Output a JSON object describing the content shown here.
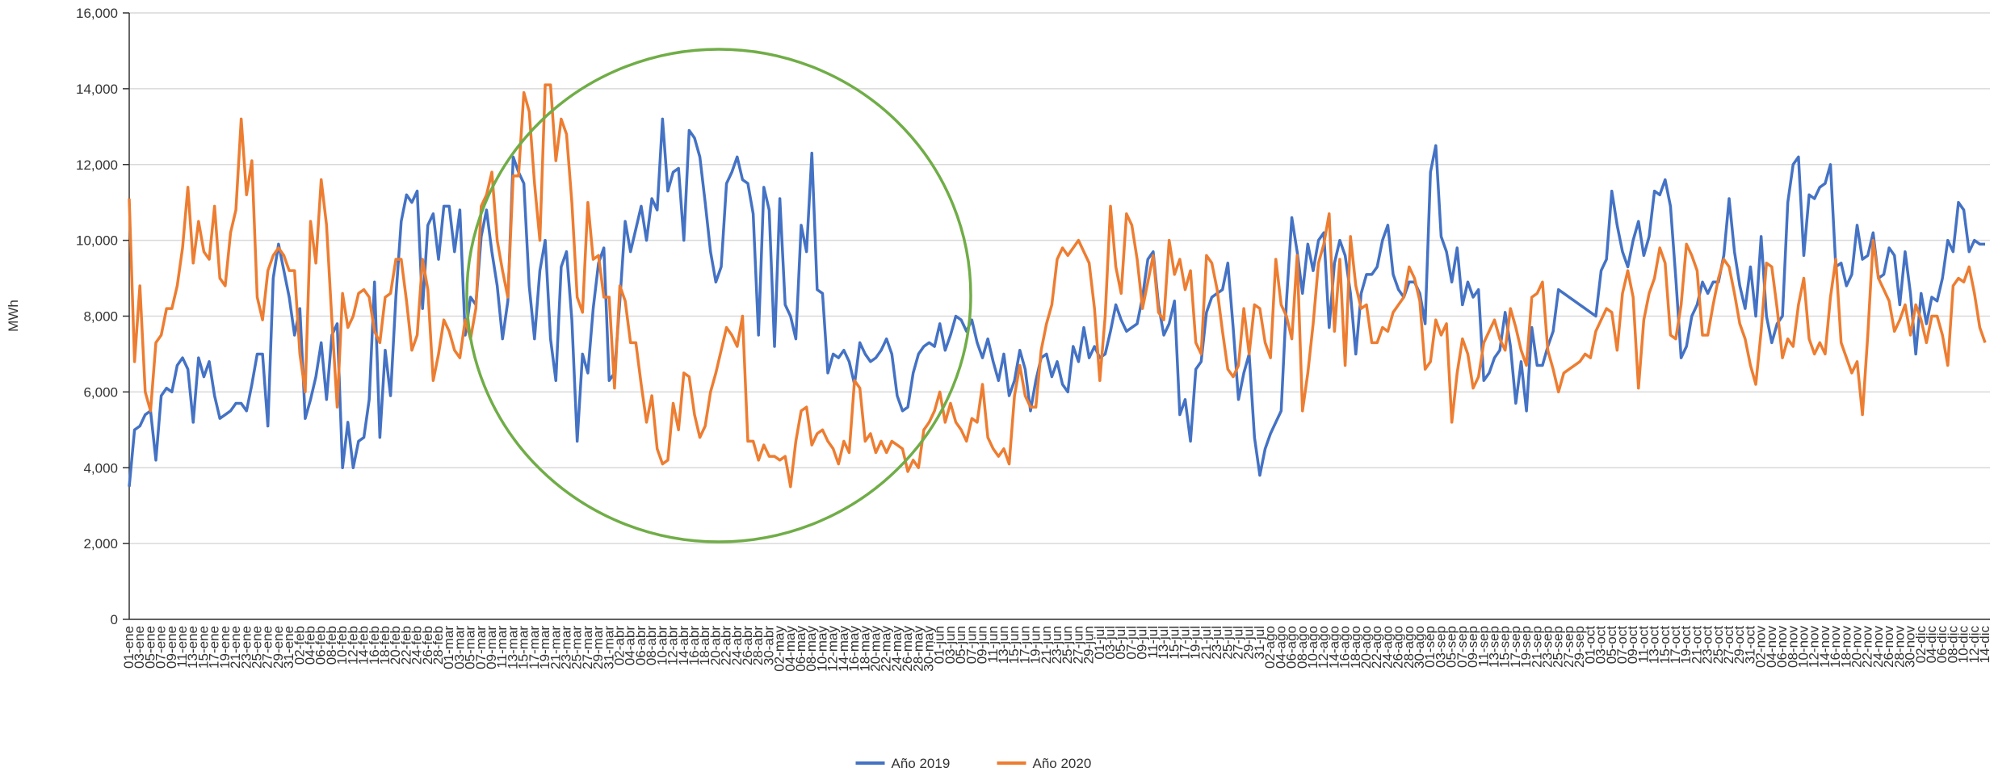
{
  "chart_data": {
    "type": "line",
    "y_label": "MWh",
    "categories": [
      "01-ene",
      null,
      "03-ene",
      null,
      "05-ene",
      null,
      "07-ene",
      null,
      "09-ene",
      null,
      "11-ene",
      null,
      "13-ene",
      null,
      "15-ene",
      null,
      "17-ene",
      null,
      "19-ene",
      null,
      "21-ene",
      null,
      "23-ene",
      null,
      "25-ene",
      null,
      "27-ene",
      null,
      "29-ene",
      null,
      "31-ene",
      null,
      "02-feb",
      null,
      "04-feb",
      null,
      "06-feb",
      null,
      "08-feb",
      null,
      "10-feb",
      null,
      "12-feb",
      null,
      "14-feb",
      null,
      "16-feb",
      null,
      "18-feb",
      null,
      "20-feb",
      null,
      "22-feb",
      null,
      "24-feb",
      null,
      "26-feb",
      null,
      "28-feb",
      null,
      "01-mar",
      null,
      "03-mar",
      null,
      "05-mar",
      null,
      "07-mar",
      null,
      "09-mar",
      null,
      "11-mar",
      null,
      "13-mar",
      null,
      "15-mar",
      null,
      "17-mar",
      null,
      "19-mar",
      null,
      "21-mar",
      null,
      "23-mar",
      null,
      "25-mar",
      null,
      "27-mar",
      null,
      "29-mar",
      null,
      "31-mar",
      null,
      "02-abr",
      null,
      "04-abr",
      null,
      "06-abr",
      null,
      "08-abr",
      null,
      "10-abr",
      null,
      "12-abr",
      null,
      "14-abr",
      null,
      "16-abr",
      null,
      "18-abr",
      null,
      "20-abr",
      null,
      "22-abr",
      null,
      "24-abr",
      null,
      "26-abr",
      null,
      "28-abr",
      null,
      "30-abr",
      null,
      "02-may",
      null,
      "04-may",
      null,
      "06-may",
      null,
      "08-may",
      null,
      "10-may",
      null,
      "12-may",
      null,
      "14-may",
      null,
      "16-may",
      null,
      "18-may",
      null,
      "20-may",
      null,
      "22-may",
      null,
      "24-may",
      null,
      "26-may",
      null,
      "28-may",
      null,
      "30-may",
      null,
      "01-jun",
      null,
      "03-jun",
      null,
      "05-jun",
      null,
      "07-jun",
      null,
      "09-jun",
      null,
      "11-jun",
      null,
      "13-jun",
      null,
      "15-jun",
      null,
      "17-jun",
      null,
      "19-jun",
      null,
      "21-jun",
      null,
      "23-jun",
      null,
      "25-jun",
      null,
      "27-jun",
      null,
      "29-jun",
      null,
      "01-jul",
      null,
      "03-jul",
      null,
      "05-jul",
      null,
      "07-jul",
      null,
      "09-jul",
      null,
      "11-jul",
      null,
      "13-jul",
      null,
      "15-jul",
      null,
      "17-jul",
      null,
      "19-jul",
      null,
      "21-jul",
      null,
      "23-jul",
      null,
      "25-jul",
      null,
      "27-jul",
      null,
      "29-jul",
      null,
      "31-jul",
      null,
      "02-ago",
      null,
      "04-ago",
      null,
      "06-ago",
      null,
      "08-ago",
      null,
      "10-ago",
      null,
      "12-ago",
      null,
      "14-ago",
      null,
      "16-ago",
      null,
      "18-ago",
      null,
      "20-ago",
      null,
      "22-ago",
      null,
      "24-ago",
      null,
      "26-ago",
      null,
      "28-ago",
      null,
      "30-ago",
      null,
      "01-sep",
      null,
      "03-sep",
      null,
      "05-sep",
      null,
      "07-sep",
      null,
      "09-sep",
      null,
      "11-sep",
      null,
      "13-sep",
      null,
      "15-sep",
      null,
      "17-sep",
      null,
      "19-sep",
      null,
      "21-sep",
      null,
      "23-sep",
      null,
      "25-sep",
      null,
      "27-sep",
      null,
      "29-sep",
      null,
      "01-oct",
      null,
      "03-oct",
      null,
      "05-oct",
      null,
      "07-oct",
      null,
      "09-oct",
      null,
      "11-oct",
      null,
      "13-oct",
      null,
      "15-oct",
      null,
      "17-oct",
      null,
      "19-oct",
      null,
      "21-oct",
      null,
      "23-oct",
      null,
      "25-oct",
      null,
      "27-oct",
      null,
      "29-oct",
      null,
      "31-oct",
      null,
      "02-nov",
      null,
      "04-nov",
      null,
      "06-nov",
      null,
      "08-nov",
      null,
      "10-nov",
      null,
      "12-nov",
      null,
      "14-nov",
      null,
      "16-nov",
      null,
      "18-nov",
      null,
      "20-nov",
      null,
      "22-nov",
      null,
      "24-nov",
      null,
      "26-nov",
      null,
      "28-nov",
      null,
      "30-nov",
      null,
      "02-dic",
      null,
      "04-dic",
      null,
      "06-dic",
      null,
      "08-dic",
      null,
      "10-dic",
      null,
      "12-dic",
      null,
      "14-dic"
    ],
    "series": [
      {
        "name": "Año 2019",
        "color": "#4472c4",
        "values": [
          3500,
          5000,
          5100,
          5400,
          5500,
          4200,
          5900,
          6100,
          6000,
          6700,
          6900,
          6600,
          5200,
          6900,
          6400,
          6800,
          5900,
          5300,
          5400,
          5500,
          5700,
          5700,
          5500,
          6200,
          7000,
          7000,
          5100,
          9000,
          9900,
          9200,
          8500,
          7500,
          8200,
          5300,
          5800,
          6400,
          7300,
          5800,
          7500,
          7800,
          4000,
          5200,
          4000,
          4700,
          4800,
          5800,
          8900,
          4800,
          7100,
          5900,
          8500,
          10500,
          11200,
          11000,
          11300,
          8200,
          10400,
          10700,
          9500,
          10900,
          10900,
          9700,
          10800,
          7500,
          8500,
          8300,
          10100,
          10800,
          9700,
          8800,
          7400,
          8400,
          12200,
          11800,
          11500,
          8800,
          7400,
          9200,
          10000,
          7400,
          6300,
          9300,
          9700,
          7900,
          4700,
          7000,
          6500,
          8200,
          9400,
          9800,
          6300,
          6500,
          8400,
          10500,
          9700,
          10300,
          10900,
          10000,
          11100,
          10800,
          13200,
          11300,
          11800,
          11900,
          10000,
          12900,
          12700,
          12200,
          11000,
          9700,
          8900,
          9300,
          11500,
          11800,
          12200,
          11600,
          11500,
          10700,
          7500,
          11400,
          10800,
          7200,
          11100,
          8300,
          8000,
          7400,
          10400,
          9700,
          12300,
          8700,
          8600,
          6500,
          7000,
          6900,
          7100,
          6800,
          6200,
          7300,
          7000,
          6800,
          6900,
          7100,
          7400,
          7000,
          5900,
          5500,
          5600,
          6500,
          7000,
          7200,
          7300,
          7200,
          7800,
          7100,
          7500,
          8000,
          7900,
          7600,
          7900,
          7300,
          6900,
          7400,
          6800,
          6300,
          7000,
          5900,
          6300,
          7100,
          6600,
          5500,
          6300,
          6900,
          7000,
          6400,
          6800,
          6200,
          6000,
          7200,
          6800,
          7700,
          6900,
          7200,
          6900,
          7000,
          7600,
          8300,
          7900,
          7600,
          7700,
          7800,
          8500,
          9500,
          9700,
          8300,
          7500,
          7800,
          8400,
          5400,
          5800,
          4700,
          6600,
          6800,
          8100,
          8500,
          8600,
          8700,
          9400,
          7700,
          5800,
          6500,
          7000,
          4800,
          3800,
          4500,
          4900,
          5200,
          5500,
          8400,
          10600,
          9700,
          8600,
          9900,
          9200,
          10000,
          10200,
          7700,
          9400,
          10000,
          9600,
          8600,
          7000,
          8600,
          9100,
          9100,
          9300,
          10000,
          10400,
          9100,
          8700,
          8500,
          8900,
          8900,
          8600,
          7800,
          11800,
          12500,
          10100,
          9700,
          8900,
          9800,
          8300,
          8900,
          8500,
          8700,
          6300,
          6500,
          6900,
          7100,
          8100,
          7200,
          5700,
          6800,
          5500,
          7700,
          6700,
          6700,
          7200,
          7600,
          8700,
          8600,
          8500,
          8400,
          8300,
          8200,
          8100,
          8000,
          9200,
          9500,
          11300,
          10400,
          9700,
          9300,
          10000,
          10500,
          9600,
          10100,
          11300,
          11200,
          11600,
          10900,
          9000,
          6900,
          7200,
          8000,
          8300,
          8900,
          8600,
          8900,
          8900,
          9600,
          11100,
          9700,
          8800,
          8200,
          9300,
          8000,
          10100,
          8000,
          7300,
          7800,
          8000,
          11000,
          12000,
          12200,
          9600,
          11200,
          11100,
          11400,
          11500,
          12000,
          9300,
          9400,
          8800,
          9100,
          10400,
          9500,
          9600,
          10200,
          9000,
          9100,
          9800,
          9600,
          8300,
          9700,
          8600,
          7000,
          8600,
          7800,
          8500,
          8400,
          9000,
          10000,
          9700,
          11000,
          10800,
          9700,
          10000,
          9900,
          9900
        ]
      },
      {
        "name": "Año 2020",
        "color": "#ed7d31",
        "values": [
          11100,
          6800,
          8800,
          6000,
          5500,
          7300,
          7500,
          8200,
          8200,
          8800,
          9800,
          11400,
          9400,
          10500,
          9700,
          9500,
          10900,
          9000,
          8800,
          10200,
          10800,
          13200,
          11200,
          12100,
          8500,
          7900,
          9200,
          9600,
          9800,
          9600,
          9200,
          9200,
          7000,
          6000,
          10500,
          9400,
          11600,
          10400,
          7900,
          5600,
          8600,
          7700,
          8000,
          8600,
          8700,
          8500,
          7600,
          7300,
          8500,
          8600,
          9500,
          9500,
          8400,
          7100,
          7500,
          9500,
          8700,
          6300,
          7000,
          7900,
          7600,
          7100,
          6900,
          7900,
          7400,
          8200,
          10900,
          11200,
          11800,
          10000,
          9200,
          8500,
          11700,
          11700,
          13900,
          13400,
          11500,
          10000,
          14100,
          14100,
          12100,
          13200,
          12800,
          11000,
          8500,
          8100,
          11000,
          9500,
          9600,
          8500,
          8500,
          6100,
          8800,
          8400,
          7300,
          7300,
          6200,
          5200,
          5900,
          4500,
          4100,
          4200,
          5700,
          5000,
          6500,
          6400,
          5400,
          4800,
          5100,
          6000,
          6500,
          7100,
          7700,
          7500,
          7200,
          8000,
          4700,
          4700,
          4200,
          4600,
          4300,
          4300,
          4200,
          4300,
          3500,
          4700,
          5500,
          5600,
          4600,
          4900,
          5000,
          4700,
          4500,
          4100,
          4700,
          4400,
          6300,
          6100,
          4700,
          4900,
          4400,
          4700,
          4400,
          4700,
          4600,
          4500,
          3900,
          4200,
          4000,
          5000,
          5200,
          5500,
          6000,
          5200,
          5700,
          5200,
          5000,
          4700,
          5300,
          5200,
          6200,
          4800,
          4500,
          4300,
          4500,
          4100,
          5900,
          6700,
          5900,
          5600,
          5600,
          7100,
          7800,
          8300,
          9500,
          9800,
          9600,
          9800,
          10000,
          9700,
          9400,
          8200,
          6300,
          8000,
          10900,
          9300,
          8600,
          10700,
          10400,
          9500,
          8200,
          8900,
          9600,
          8100,
          7900,
          10000,
          9100,
          9500,
          8700,
          9200,
          7300,
          7000,
          9600,
          9400,
          8700,
          7600,
          6600,
          6400,
          6700,
          8200,
          7000,
          8300,
          8200,
          7300,
          6900,
          9500,
          8300,
          8000,
          7400,
          9600,
          5500,
          6500,
          7800,
          9400,
          9900,
          10700,
          7600,
          9500,
          6700,
          10100,
          8800,
          8200,
          8300,
          7300,
          7300,
          7700,
          7600,
          8100,
          8300,
          8500,
          9300,
          9000,
          8400,
          6600,
          6800,
          7900,
          7500,
          7800,
          5200,
          6500,
          7400,
          7000,
          6100,
          6400,
          7300,
          7600,
          7900,
          7400,
          7100,
          8200,
          7700,
          7100,
          6700,
          8500,
          8600,
          8900,
          7100,
          6600,
          6000,
          6500,
          6600,
          6700,
          6800,
          7000,
          6900,
          7600,
          7900,
          8200,
          8100,
          7100,
          8600,
          9200,
          8500,
          6100,
          7900,
          8600,
          9000,
          9800,
          9400,
          7500,
          7400,
          8300,
          9900,
          9600,
          9200,
          7500,
          7500,
          8300,
          9000,
          9500,
          9300,
          8600,
          7800,
          7400,
          6700,
          6200,
          7600,
          9400,
          9300,
          8200,
          6900,
          7400,
          7200,
          8300,
          9000,
          7400,
          7000,
          7300,
          7000,
          8500,
          9500,
          7300,
          6900,
          6500,
          6800,
          5400,
          7500,
          10000,
          9000,
          8700,
          8400,
          7600,
          7900,
          8300,
          7500,
          8300,
          7900,
          7300,
          8000,
          8000,
          7500,
          6700,
          8800,
          9000,
          8900,
          9300,
          8600,
          7700,
          7300
        ]
      }
    ],
    "ylim": [
      0,
      16000
    ],
    "yticks": [
      0,
      {
        "value": 2000,
        "label": "2,000"
      },
      {
        "value": 4000,
        "label": "4,000"
      },
      {
        "value": 6000,
        "label": "6,000"
      },
      {
        "value": 8000,
        "label": "8,000"
      },
      {
        "value": 10000,
        "label": "10,000"
      },
      {
        "value": 12000,
        "label": "12,000"
      },
      {
        "value": 14000,
        "label": "14,000"
      },
      {
        "value": 16000,
        "label": "16,000"
      }
    ],
    "grid": true,
    "legend": "bottom"
  }
}
